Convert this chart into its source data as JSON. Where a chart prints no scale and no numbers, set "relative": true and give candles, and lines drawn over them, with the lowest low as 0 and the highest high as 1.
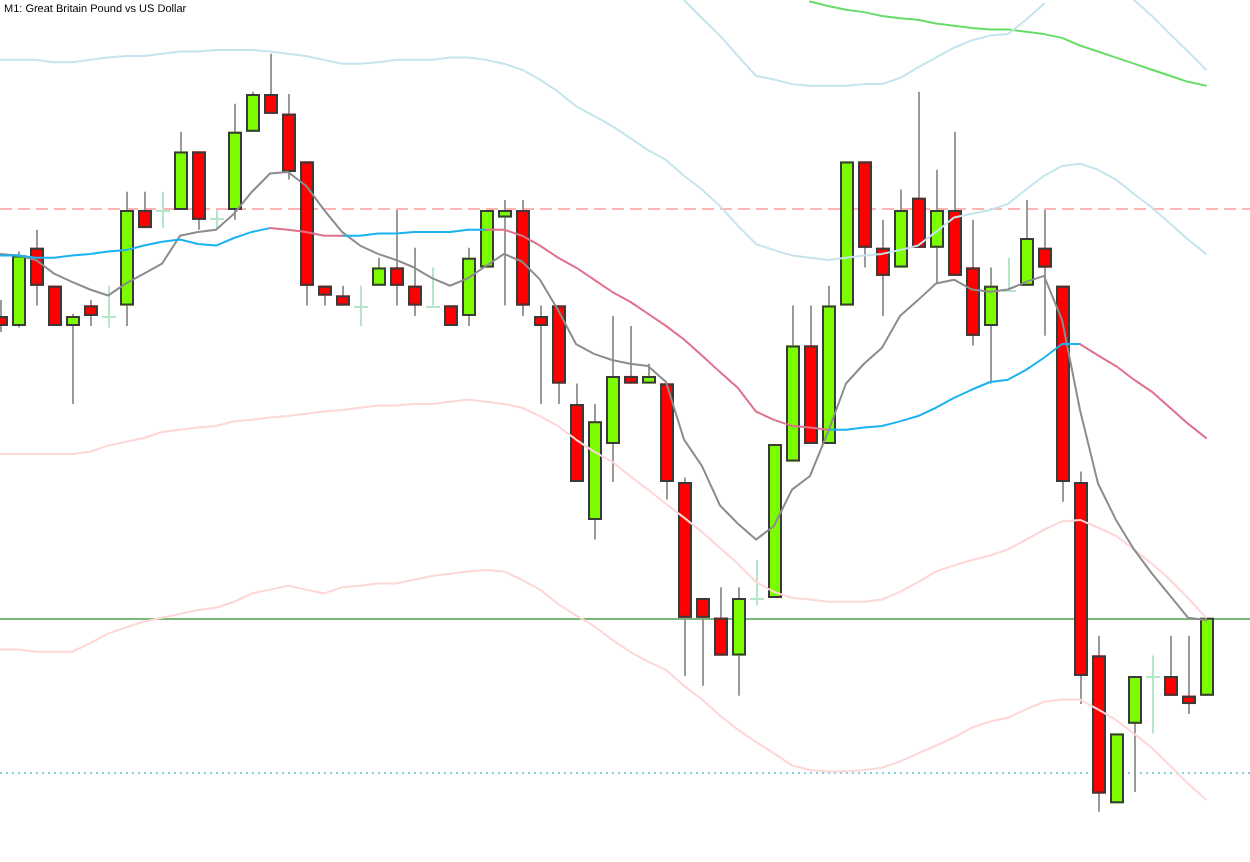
{
  "chart_data": {
    "type": "candlestick",
    "title": "M1: Great Britain Pound vs US Dollar",
    "relative": true,
    "marker": "none",
    "categories": [
      null,
      null,
      null,
      null,
      null,
      null,
      null,
      null,
      null,
      null,
      null,
      null,
      null,
      null,
      null,
      null,
      null,
      null,
      null,
      null,
      null,
      null,
      null,
      null,
      null,
      null,
      null,
      null,
      null,
      null,
      null,
      null,
      null,
      null,
      null,
      null,
      null,
      null,
      null,
      null,
      null,
      null,
      null,
      null,
      null,
      null,
      null,
      null,
      null,
      null,
      null,
      null,
      null,
      null,
      null,
      null,
      null,
      null,
      null,
      null,
      null,
      null,
      null,
      null,
      null,
      null,
      null,
      null
    ],
    "ohlc": [
      [
        0.654,
        0.675,
        0.633,
        0.641
      ],
      [
        0.641,
        0.739,
        0.639,
        0.734
      ],
      [
        0.744,
        0.768,
        0.668,
        0.694
      ],
      [
        0.694,
        0.694,
        0.641,
        0.641
      ],
      [
        0.641,
        0.657,
        0.538,
        0.654
      ],
      [
        0.668,
        0.675,
        0.641,
        0.654
      ],
      [
        0.654,
        0.694,
        0.639,
        0.654
      ],
      [
        0.668,
        0.818,
        0.641,
        0.794
      ],
      [
        0.794,
        0.818,
        0.77,
        0.77
      ],
      [
        0.794,
        0.818,
        0.77,
        0.794
      ],
      [
        0.794,
        0.897,
        0.794,
        0.871
      ],
      [
        0.871,
        0.871,
        0.768,
        0.781
      ],
      [
        0.784,
        0.794,
        0.77,
        0.784
      ],
      [
        0.794,
        0.934,
        0.781,
        0.897
      ],
      [
        0.897,
        0.95,
        0.897,
        0.947
      ],
      [
        0.947,
        1.0,
        0.921,
        0.921
      ],
      [
        0.921,
        0.947,
        0.834,
        0.844
      ],
      [
        0.858,
        0.858,
        0.668,
        0.694
      ],
      [
        0.694,
        0.694,
        0.668,
        0.681
      ],
      [
        0.681,
        0.694,
        0.668,
        0.668
      ],
      [
        0.668,
        0.694,
        0.641,
        0.668
      ],
      [
        0.694,
        0.731,
        0.694,
        0.718
      ],
      [
        0.718,
        0.794,
        0.668,
        0.694
      ],
      [
        0.694,
        0.744,
        0.654,
        0.668
      ],
      [
        0.668,
        0.718,
        0.668,
        0.668
      ],
      [
        0.668,
        0.668,
        0.641,
        0.641
      ],
      [
        0.654,
        0.744,
        0.641,
        0.731
      ],
      [
        0.718,
        0.794,
        0.718,
        0.794
      ],
      [
        0.784,
        0.807,
        0.668,
        0.794
      ],
      [
        0.794,
        0.807,
        0.654,
        0.668
      ],
      [
        0.654,
        0.668,
        0.538,
        0.641
      ],
      [
        0.668,
        0.668,
        0.538,
        0.565
      ],
      [
        0.538,
        0.565,
        0.435,
        0.435
      ],
      [
        0.385,
        0.538,
        0.359,
        0.515
      ],
      [
        0.485,
        0.654,
        0.435,
        0.575
      ],
      [
        0.575,
        0.641,
        0.565,
        0.565
      ],
      [
        0.565,
        0.591,
        0.565,
        0.575
      ],
      [
        0.565,
        0.565,
        0.412,
        0.435
      ],
      [
        0.435,
        0.441,
        0.179,
        0.256
      ],
      [
        0.282,
        0.282,
        0.166,
        0.256
      ],
      [
        0.256,
        0.296,
        0.206,
        0.206
      ],
      [
        0.206,
        0.296,
        0.153,
        0.282
      ],
      [
        0.282,
        0.332,
        0.272,
        0.282
      ],
      [
        0.282,
        0.485,
        0.282,
        0.485
      ],
      [
        0.462,
        0.668,
        0.462,
        0.615
      ],
      [
        0.615,
        0.668,
        0.485,
        0.485
      ],
      [
        0.485,
        0.694,
        0.485,
        0.668
      ],
      [
        0.668,
        0.858,
        0.668,
        0.858
      ],
      [
        0.858,
        0.858,
        0.718,
        0.744
      ],
      [
        0.744,
        0.781,
        0.654,
        0.707
      ],
      [
        0.718,
        0.821,
        0.718,
        0.794
      ],
      [
        0.81,
        0.95,
        0.744,
        0.744
      ],
      [
        0.744,
        0.847,
        0.697,
        0.794
      ],
      [
        0.794,
        0.897,
        0.707,
        0.707
      ],
      [
        0.718,
        0.781,
        0.615,
        0.628
      ],
      [
        0.641,
        0.718,
        0.565,
        0.694
      ],
      [
        0.689,
        0.731,
        0.689,
        0.689
      ],
      [
        0.694,
        0.807,
        0.694,
        0.757
      ],
      [
        0.744,
        0.794,
        0.628,
        0.718
      ],
      [
        0.694,
        0.694,
        0.409,
        0.435
      ],
      [
        0.435,
        0.449,
        0.142,
        0.179
      ],
      [
        0.206,
        0.232,
        0,
        0.024
      ],
      [
        0.011,
        0.103,
        0.011,
        0.103
      ],
      [
        0.116,
        0.179,
        0.026,
        0.179
      ],
      [
        0.179,
        0.206,
        0.103,
        0.179
      ],
      [
        0.179,
        0.232,
        0.153,
        0.153
      ],
      [
        0.153,
        0.232,
        0.129,
        0.142
      ],
      [
        0.153,
        0.256,
        0.153,
        0.256
      ]
    ],
    "colors": [
      "#ff0000",
      "#7cfc00",
      "#ff0000",
      "#ff0000",
      "#7cfc00",
      "#ff0000",
      "#b4e6c8",
      "#7cfc00",
      "#ff0000",
      "#b4e6c8",
      "#7cfc00",
      "#ff0000",
      "#b4e6c8",
      "#7cfc00",
      "#7cfc00",
      "#ff0000",
      "#ff0000",
      "#ff0000",
      "#ff0000",
      "#ff0000",
      "#b4e6c8",
      "#7cfc00",
      "#ff0000",
      "#ff0000",
      "#b4e6c8",
      "#ff0000",
      "#7cfc00",
      "#7cfc00",
      "#7cfc00",
      "#ff0000",
      "#ff0000",
      "#ff0000",
      "#ff0000",
      "#7cfc00",
      "#7cfc00",
      "#ff0000",
      "#7cfc00",
      "#ff0000",
      "#ff0000",
      "#ff0000",
      "#ff0000",
      "#7cfc00",
      "#b4e6c8",
      "#7cfc00",
      "#7cfc00",
      "#ff0000",
      "#7cfc00",
      "#7cfc00",
      "#ff0000",
      "#ff0000",
      "#7cfc00",
      "#ff0000",
      "#7cfc00",
      "#ff0000",
      "#ff0000",
      "#7cfc00",
      "#b4e6c8",
      "#7cfc00",
      "#ff0000",
      "#ff0000",
      "#ff0000",
      "#ff0000",
      "#7cfc00",
      "#7cfc00",
      "#b4e6c8",
      "#ff0000",
      "#ff0000",
      "#7cfc00"
    ],
    "series": [
      {
        "type": "line",
        "color": "#e0708c",
        "values": [
          null,
          null,
          null,
          null,
          null,
          null,
          null,
          null,
          null,
          null,
          null,
          null,
          null,
          null,
          null,
          0.77,
          0.768,
          0.765,
          0.76,
          0.76,
          null,
          null,
          null,
          null,
          null,
          null,
          null,
          0.768,
          0.768,
          0.76,
          0.747,
          0.731,
          0.718,
          0.702,
          0.686,
          0.673,
          0.657,
          0.641,
          0.623,
          0.602,
          0.58,
          0.559,
          0.528,
          0.517,
          0.509,
          0.507,
          0.504,
          null,
          null,
          null,
          null,
          null,
          null,
          null,
          null,
          null,
          null,
          null,
          null,
          null,
          0.617,
          0.602,
          0.588,
          0.57,
          0.554,
          0.533,
          0.512,
          0.493
        ]
      },
      {
        "type": "line",
        "color": "#1ab2f0",
        "values": [
          0.734,
          0.734,
          0.731,
          0.731,
          0.734,
          0.736,
          0.739,
          0.741,
          0.747,
          0.752,
          0.755,
          0.749,
          0.747,
          0.757,
          0.765,
          0.77,
          null,
          null,
          null,
          0.76,
          0.76,
          0.763,
          0.763,
          0.765,
          0.765,
          0.765,
          0.768,
          0.768,
          null,
          null,
          null,
          null,
          null,
          null,
          null,
          null,
          null,
          null,
          null,
          null,
          null,
          null,
          null,
          null,
          null,
          null,
          0.504,
          0.504,
          0.507,
          0.509,
          0.515,
          0.522,
          0.533,
          0.546,
          0.557,
          0.567,
          0.57,
          0.583,
          0.599,
          0.617,
          0.617,
          null,
          null,
          null,
          null,
          null,
          null,
          null
        ]
      },
      {
        "type": "line",
        "color": "#8c8c8c",
        "values": [
          0.736,
          0.734,
          0.728,
          0.71,
          0.699,
          0.689,
          0.681,
          0.697,
          0.71,
          0.723,
          0.76,
          0.765,
          0.768,
          0.789,
          0.818,
          0.842,
          0.844,
          0.826,
          0.794,
          0.765,
          0.747,
          0.736,
          0.728,
          0.718,
          0.704,
          0.694,
          0.704,
          0.72,
          0.736,
          0.726,
          0.702,
          0.662,
          0.617,
          0.604,
          0.596,
          0.591,
          0.588,
          0.567,
          0.491,
          0.456,
          0.404,
          0.38,
          0.359,
          0.377,
          0.425,
          0.443,
          0.501,
          0.565,
          0.591,
          0.612,
          0.654,
          0.675,
          0.697,
          0.702,
          0.689,
          0.686,
          0.689,
          0.699,
          0.707,
          0.649,
          0.53,
          0.433,
          0.385,
          0.346,
          0.314,
          0.285,
          0.256,
          0.253
        ]
      },
      {
        "type": "line",
        "color": "#c6e4ee",
        "values": [
          null,
          null,
          null,
          null,
          null,
          null,
          null,
          null,
          null,
          null,
          null,
          null,
          null,
          null,
          null,
          null,
          null,
          null,
          null,
          null,
          null,
          null,
          null,
          null,
          null,
          null,
          null,
          null,
          null,
          null,
          null,
          null,
          null,
          null,
          null,
          null,
          null,
          null,
          1.071,
          1.047,
          1.024,
          0.997,
          0.971,
          0.966,
          0.96,
          0.958,
          0.958,
          0.958,
          0.96,
          0.96,
          0.968,
          0.982,
          0.995,
          1.008,
          1.018,
          1.024,
          1.026,
          1.045,
          1.066,
          null,
          null,
          null,
          null,
          1.071,
          1.05,
          1.026,
          1.003,
          0.979
        ]
      },
      {
        "type": "line",
        "color": "#c6e4ee",
        "values": [
          0.992,
          0.992,
          0.992,
          0.989,
          0.989,
          0.992,
          0.995,
          0.997,
          0.997,
          1.0,
          1.003,
          1.003,
          1.005,
          1.005,
          1.005,
          1.003,
          1.0,
          0.997,
          0.992,
          0.987,
          0.987,
          0.989,
          0.992,
          0.992,
          0.992,
          0.995,
          0.995,
          0.992,
          0.987,
          0.979,
          0.966,
          0.95,
          0.931,
          0.918,
          0.905,
          0.889,
          0.873,
          0.86,
          0.839,
          0.821,
          0.799,
          0.773,
          0.749,
          0.741,
          0.734,
          0.731,
          0.728,
          0.731,
          0.734,
          0.736,
          0.741,
          0.747,
          0.765,
          0.784,
          0.789,
          0.794,
          0.802,
          0.821,
          0.839,
          0.852,
          0.855,
          0.847,
          0.834,
          0.815,
          0.797,
          0.776,
          0.755,
          0.736
        ]
      },
      {
        "type": "line",
        "color": "#ffd6d6",
        "values": [
          0.472,
          0.472,
          0.472,
          0.472,
          0.472,
          0.475,
          0.483,
          0.488,
          0.493,
          0.501,
          0.504,
          0.507,
          0.509,
          0.515,
          0.517,
          0.52,
          0.522,
          0.525,
          0.528,
          0.53,
          0.533,
          0.536,
          0.536,
          0.538,
          0.538,
          0.541,
          0.544,
          0.541,
          0.538,
          0.533,
          0.522,
          0.509,
          0.491,
          0.475,
          0.462,
          0.443,
          0.425,
          0.406,
          0.388,
          0.369,
          0.348,
          0.327,
          0.303,
          0.29,
          0.282,
          0.28,
          0.277,
          0.277,
          0.277,
          0.28,
          0.29,
          0.303,
          0.317,
          0.325,
          0.332,
          0.338,
          0.346,
          0.359,
          0.372,
          0.383,
          0.385,
          0.375,
          0.364,
          0.346,
          0.327,
          0.306,
          0.282,
          0.256
        ]
      },
      {
        "type": "line",
        "color": "#ffd6d6",
        "values": [
          0.214,
          0.214,
          0.211,
          0.211,
          0.211,
          0.222,
          0.235,
          0.243,
          0.251,
          0.256,
          0.261,
          0.266,
          0.269,
          0.277,
          0.288,
          0.293,
          0.298,
          0.293,
          0.288,
          0.296,
          0.298,
          0.301,
          0.301,
          0.306,
          0.311,
          0.314,
          0.317,
          0.319,
          0.317,
          0.306,
          0.293,
          0.274,
          0.259,
          0.245,
          0.227,
          0.211,
          0.198,
          0.187,
          0.166,
          0.148,
          0.127,
          0.108,
          0.092,
          0.077,
          0.061,
          0.055,
          0.053,
          0.053,
          0.055,
          0.058,
          0.066,
          0.077,
          0.087,
          0.098,
          0.111,
          0.119,
          0.124,
          0.135,
          0.145,
          0.148,
          0.148,
          0.135,
          0.121,
          0.103,
          0.084,
          0.061,
          0.037,
          0.016
        ]
      },
      {
        "type": "line",
        "color": "#66dd66",
        "values": [
          null,
          null,
          null,
          null,
          null,
          null,
          null,
          null,
          null,
          null,
          null,
          null,
          null,
          null,
          null,
          null,
          null,
          null,
          null,
          null,
          null,
          null,
          null,
          null,
          null,
          null,
          null,
          null,
          null,
          null,
          null,
          null,
          null,
          null,
          null,
          null,
          null,
          null,
          null,
          null,
          null,
          null,
          null,
          null,
          null,
          1.069,
          1.063,
          1.058,
          1.055,
          1.05,
          1.047,
          1.045,
          1.04,
          1.037,
          1.034,
          1.032,
          1.032,
          1.029,
          1.026,
          1.021,
          1.011,
          1.003,
          0.995,
          0.987,
          0.979,
          0.971,
          0.963,
          0.958
        ]
      }
    ],
    "ref_lines": [
      {
        "axis": "y",
        "value": 0.797,
        "color": "#ffb4b4",
        "line_style": "dashed"
      },
      {
        "axis": "y",
        "value": 0.256,
        "color": "#78b878"
      },
      {
        "axis": "y",
        "value": 0.053,
        "color": "#80d0d8",
        "line_style": "dotted"
      }
    ]
  }
}
